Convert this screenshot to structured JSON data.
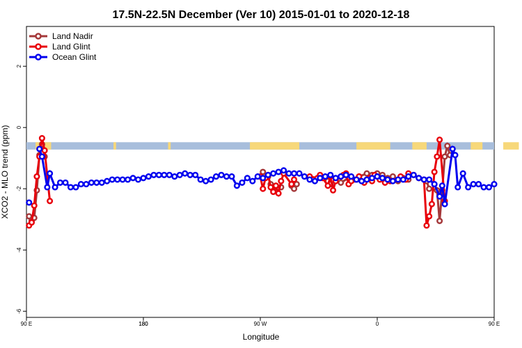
{
  "chart_data": {
    "type": "line",
    "title": "17.5N-22.5N December (Ver 10)   2015-01-01 to 2020-12-18",
    "xlabel": "Longitude",
    "ylabel": "XCO2 - MLO trend (ppm)",
    "xlim": [
      90,
      450
    ],
    "ylim": [
      -6.2,
      3.3
    ],
    "x_ticks": [
      {
        "value": 90,
        "label": "90 E"
      },
      {
        "value": 180,
        "label": "180"
      },
      {
        "value": 270,
        "label": "90 W"
      },
      {
        "value": 360,
        "label": "0"
      },
      {
        "value": 450,
        "label": "90 E"
      },
      {
        "value": 540,
        "label": "180"
      }
    ],
    "y_ticks": [
      {
        "value": 2,
        "label": "2"
      },
      {
        "value": 0,
        "label": "0"
      },
      {
        "value": -2,
        "label": "-2"
      },
      {
        "value": -4,
        "label": "-4"
      },
      {
        "value": -6,
        "label": "-6"
      }
    ],
    "grid": false,
    "legend_position": "top-left",
    "landmask_band": {
      "y_range": [
        -0.72,
        -0.48
      ],
      "ocean_color": "#a8bedc",
      "land_color": "#f7d87a",
      "land_segments": [
        [
          97,
          109
        ],
        [
          157,
          159
        ],
        [
          199,
          201
        ],
        [
          262,
          300
        ],
        [
          344,
          370
        ],
        [
          387,
          398
        ],
        [
          432,
          441
        ],
        [
          457,
          469
        ]
      ]
    },
    "series": [
      {
        "name": "Land Nadir",
        "color": "#a5383a",
        "points": [
          [
            92,
            -2.9
          ],
          [
            94,
            -3.05
          ],
          [
            96,
            -2.95
          ],
          [
            98,
            -2.05
          ],
          [
            100,
            -0.9
          ],
          [
            102,
            -0.55
          ],
          [
            104,
            -0.95
          ],
          [
            272,
            -1.45
          ],
          [
            276,
            -1.6
          ],
          [
            278,
            -1.85
          ],
          [
            280,
            -2.05
          ],
          [
            282,
            -1.9
          ],
          [
            286,
            -1.95
          ],
          [
            294,
            -1.9
          ],
          [
            296,
            -2.0
          ],
          [
            298,
            -1.85
          ],
          [
            322,
            -1.75
          ],
          [
            324,
            -1.85
          ],
          [
            332,
            -1.8
          ],
          [
            338,
            -1.65
          ],
          [
            342,
            -1.7
          ],
          [
            346,
            -1.6
          ],
          [
            352,
            -1.5
          ],
          [
            356,
            -1.55
          ],
          [
            360,
            -1.5
          ],
          [
            364,
            -1.55
          ],
          [
            368,
            -1.65
          ],
          [
            372,
            -1.6
          ],
          [
            376,
            -1.75
          ],
          [
            380,
            -1.65
          ],
          [
            384,
            -1.7
          ],
          [
            398,
            -1.75
          ],
          [
            400,
            -2.0
          ],
          [
            406,
            -2.05
          ],
          [
            408,
            -3.05
          ],
          [
            410,
            -2.05
          ],
          [
            412,
            -0.95
          ],
          [
            414,
            -0.6
          ],
          [
            416,
            -0.9
          ]
        ]
      },
      {
        "name": "Land Glint",
        "color": "#e8000b",
        "points": [
          [
            92,
            -3.2
          ],
          [
            94,
            -3.1
          ],
          [
            96,
            -2.55
          ],
          [
            98,
            -1.6
          ],
          [
            100,
            -0.95
          ],
          [
            102,
            -0.35
          ],
          [
            104,
            -0.75
          ],
          [
            108,
            -2.4
          ],
          [
            270,
            -1.6
          ],
          [
            272,
            -2.0
          ],
          [
            274,
            -1.65
          ],
          [
            276,
            -1.55
          ],
          [
            278,
            -1.95
          ],
          [
            280,
            -2.1
          ],
          [
            282,
            -1.9
          ],
          [
            284,
            -2.15
          ],
          [
            286,
            -1.75
          ],
          [
            288,
            -1.5
          ],
          [
            294,
            -1.85
          ],
          [
            296,
            -1.7
          ],
          [
            308,
            -1.6
          ],
          [
            314,
            -1.65
          ],
          [
            316,
            -1.55
          ],
          [
            318,
            -1.65
          ],
          [
            322,
            -1.9
          ],
          [
            324,
            -1.6
          ],
          [
            326,
            -2.05
          ],
          [
            328,
            -1.75
          ],
          [
            332,
            -1.6
          ],
          [
            334,
            -1.55
          ],
          [
            336,
            -1.5
          ],
          [
            338,
            -1.85
          ],
          [
            340,
            -1.75
          ],
          [
            344,
            -1.7
          ],
          [
            346,
            -1.6
          ],
          [
            350,
            -1.8
          ],
          [
            354,
            -1.65
          ],
          [
            356,
            -1.75
          ],
          [
            358,
            -1.55
          ],
          [
            362,
            -1.7
          ],
          [
            366,
            -1.8
          ],
          [
            370,
            -1.75
          ],
          [
            378,
            -1.6
          ],
          [
            382,
            -1.7
          ],
          [
            384,
            -1.5
          ],
          [
            388,
            -1.55
          ],
          [
            392,
            -1.65
          ],
          [
            396,
            -1.7
          ],
          [
            398,
            -3.2
          ],
          [
            400,
            -2.9
          ],
          [
            402,
            -2.5
          ],
          [
            404,
            -1.45
          ],
          [
            406,
            -0.95
          ],
          [
            408,
            -0.4
          ],
          [
            412,
            -2.4
          ]
        ]
      },
      {
        "name": "Ocean Glint",
        "color": "#0000ee",
        "points": [
          [
            92,
            -2.45
          ],
          [
            100,
            -0.7
          ],
          [
            102,
            -0.95
          ],
          [
            106,
            -1.95
          ],
          [
            108,
            -1.5
          ],
          [
            112,
            -1.95
          ],
          [
            116,
            -1.8
          ],
          [
            120,
            -1.8
          ],
          [
            124,
            -1.95
          ],
          [
            128,
            -1.95
          ],
          [
            132,
            -1.85
          ],
          [
            136,
            -1.85
          ],
          [
            140,
            -1.8
          ],
          [
            144,
            -1.8
          ],
          [
            148,
            -1.8
          ],
          [
            152,
            -1.75
          ],
          [
            156,
            -1.7
          ],
          [
            160,
            -1.7
          ],
          [
            164,
            -1.7
          ],
          [
            168,
            -1.7
          ],
          [
            172,
            -1.65
          ],
          [
            176,
            -1.7
          ],
          [
            180,
            -1.65
          ],
          [
            184,
            -1.6
          ],
          [
            188,
            -1.55
          ],
          [
            192,
            -1.55
          ],
          [
            196,
            -1.55
          ],
          [
            200,
            -1.55
          ],
          [
            204,
            -1.6
          ],
          [
            208,
            -1.55
          ],
          [
            212,
            -1.5
          ],
          [
            216,
            -1.55
          ],
          [
            220,
            -1.55
          ],
          [
            224,
            -1.7
          ],
          [
            228,
            -1.75
          ],
          [
            232,
            -1.7
          ],
          [
            236,
            -1.6
          ],
          [
            240,
            -1.55
          ],
          [
            244,
            -1.6
          ],
          [
            248,
            -1.6
          ],
          [
            252,
            -1.9
          ],
          [
            256,
            -1.8
          ],
          [
            260,
            -1.65
          ],
          [
            264,
            -1.75
          ],
          [
            268,
            -1.6
          ],
          [
            272,
            -1.65
          ],
          [
            276,
            -1.55
          ],
          [
            280,
            -1.5
          ],
          [
            284,
            -1.45
          ],
          [
            288,
            -1.4
          ],
          [
            292,
            -1.5
          ],
          [
            296,
            -1.5
          ],
          [
            300,
            -1.5
          ],
          [
            304,
            -1.6
          ],
          [
            308,
            -1.7
          ],
          [
            312,
            -1.75
          ],
          [
            316,
            -1.65
          ],
          [
            320,
            -1.6
          ],
          [
            324,
            -1.55
          ],
          [
            328,
            -1.65
          ],
          [
            332,
            -1.6
          ],
          [
            336,
            -1.55
          ],
          [
            340,
            -1.6
          ],
          [
            344,
            -1.7
          ],
          [
            348,
            -1.75
          ],
          [
            352,
            -1.7
          ],
          [
            356,
            -1.65
          ],
          [
            360,
            -1.6
          ],
          [
            364,
            -1.65
          ],
          [
            368,
            -1.7
          ],
          [
            372,
            -1.75
          ],
          [
            376,
            -1.7
          ],
          [
            380,
            -1.7
          ],
          [
            384,
            -1.6
          ],
          [
            388,
            -1.55
          ],
          [
            392,
            -1.65
          ],
          [
            396,
            -1.7
          ],
          [
            400,
            -1.7
          ],
          [
            404,
            -1.85
          ],
          [
            408,
            -2.25
          ],
          [
            410,
            -1.9
          ],
          [
            412,
            -2.5
          ],
          [
            418,
            -0.7
          ],
          [
            420,
            -0.9
          ],
          [
            422,
            -1.95
          ],
          [
            426,
            -1.5
          ],
          [
            430,
            -1.95
          ],
          [
            434,
            -1.85
          ],
          [
            438,
            -1.85
          ],
          [
            442,
            -1.95
          ],
          [
            446,
            -1.95
          ],
          [
            450,
            -1.85
          ]
        ]
      }
    ]
  }
}
